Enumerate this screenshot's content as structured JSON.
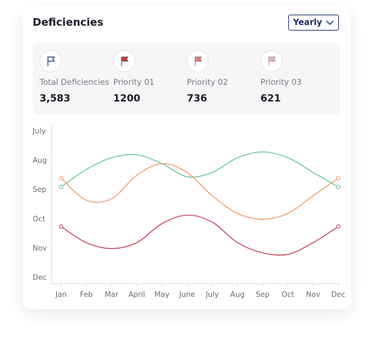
{
  "header": {
    "title": "Deficiencies",
    "dropdown": "Yearly"
  },
  "stats": [
    {
      "label": "Total Deficiencies",
      "value": "3,583"
    },
    {
      "label": "Priority 01",
      "value": "1200"
    },
    {
      "label": "Priority 02",
      "value": "736"
    },
    {
      "label": "Priority 03",
      "value": "621"
    }
  ],
  "chart_data": {
    "type": "line",
    "categories": [
      "Jan",
      "Feb",
      "Mar",
      "April",
      "May",
      "June",
      "July",
      "Aug",
      "Sep",
      "Oct",
      "Nov",
      "Dec"
    ],
    "ylim": [
      -0.2,
      5
    ],
    "yticks": [
      {
        "value": 5,
        "label": "July"
      },
      {
        "value": 4,
        "label": "Aug"
      },
      {
        "value": 3,
        "label": "Sep"
      },
      {
        "value": 2,
        "label": "Oct"
      },
      {
        "value": 1,
        "label": "Nov"
      },
      {
        "value": 0,
        "label": "Dec"
      }
    ],
    "series": [
      {
        "color": "#5cc08f",
        "values": [
          3.1,
          3.7,
          4.1,
          4.2,
          3.9,
          3.45,
          3.6,
          4.1,
          4.3,
          4.1,
          3.6,
          3.1
        ]
      },
      {
        "color": "#f0925e",
        "values": [
          3.4,
          2.65,
          2.7,
          3.5,
          3.9,
          3.6,
          2.8,
          2.2,
          2.0,
          2.2,
          2.8,
          3.4
        ]
      },
      {
        "color": "#c8344a",
        "values": [
          1.75,
          1.2,
          1.0,
          1.2,
          1.85,
          2.14,
          1.9,
          1.2,
          0.85,
          0.8,
          1.2,
          1.75
        ]
      }
    ]
  }
}
